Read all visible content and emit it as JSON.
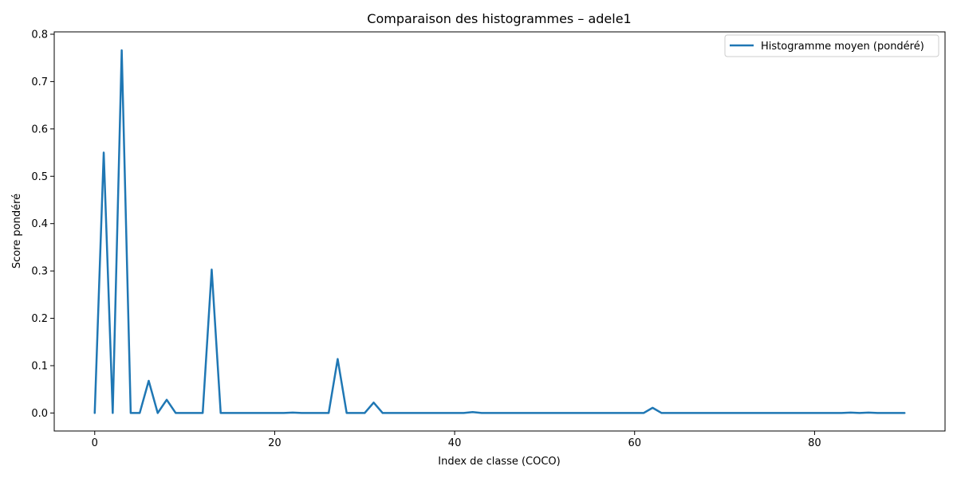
{
  "chart_data": {
    "type": "line",
    "title": "Comparaison des histogrammes – adele1",
    "xlabel": "Index de classe (COCO)",
    "ylabel": "Score pondéré",
    "xlim": [
      -4.5,
      94.5
    ],
    "ylim": [
      -0.038,
      0.805
    ],
    "xticks": [
      0,
      20,
      40,
      60,
      80
    ],
    "yticks": [
      0.0,
      0.1,
      0.2,
      0.3,
      0.4,
      0.5,
      0.6,
      0.7,
      0.8
    ],
    "xtick_labels": [
      "0",
      "20",
      "40",
      "60",
      "80"
    ],
    "ytick_labels": [
      "0.0",
      "0.1",
      "0.2",
      "0.3",
      "0.4",
      "0.5",
      "0.6",
      "0.7",
      "0.8"
    ],
    "grid": false,
    "legend_position": "top-right",
    "series": [
      {
        "name": "Histogramme moyen (pondéré)",
        "color": "#1f77b4",
        "x": [
          0,
          1,
          2,
          3,
          4,
          5,
          6,
          7,
          8,
          9,
          10,
          11,
          12,
          13,
          14,
          15,
          16,
          17,
          18,
          19,
          20,
          21,
          22,
          23,
          24,
          25,
          26,
          27,
          28,
          29,
          30,
          31,
          32,
          33,
          34,
          35,
          36,
          37,
          38,
          39,
          40,
          41,
          42,
          43,
          44,
          45,
          46,
          47,
          48,
          49,
          50,
          51,
          52,
          53,
          54,
          55,
          56,
          57,
          58,
          59,
          60,
          61,
          62,
          63,
          64,
          65,
          66,
          67,
          68,
          69,
          70,
          71,
          72,
          73,
          74,
          75,
          76,
          77,
          78,
          79,
          80,
          81,
          82,
          83,
          84,
          85,
          86,
          87,
          88,
          89,
          90
        ],
        "values": [
          0,
          0.55,
          0,
          0.766,
          0,
          0,
          0.068,
          0,
          0.028,
          0,
          0,
          0,
          0,
          0.303,
          0,
          0,
          0,
          0,
          0,
          0,
          0,
          0,
          0.001,
          0,
          0,
          0,
          0,
          0.114,
          0,
          0,
          0,
          0.022,
          0,
          0,
          0,
          0,
          0,
          0,
          0,
          0,
          0,
          0,
          0.002,
          0,
          0,
          0,
          0,
          0,
          0,
          0,
          0,
          0,
          0,
          0,
          0,
          0,
          0,
          0,
          0,
          0,
          0,
          0,
          0.011,
          0,
          0,
          0,
          0,
          0,
          0,
          0,
          0,
          0,
          0,
          0,
          0,
          0,
          0,
          0,
          0,
          0,
          0,
          0,
          0,
          0,
          0.001,
          0,
          0.001,
          0,
          0,
          0,
          0
        ]
      }
    ]
  }
}
